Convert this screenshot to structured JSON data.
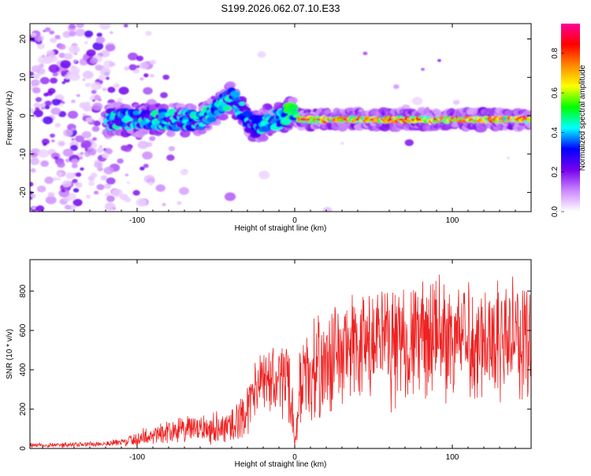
{
  "chart_data": [
    {
      "type": "heatmap",
      "title": "S199.2026.062.07.10.E33",
      "xlabel": "Height of straight line (km)",
      "ylabel": "Frequency (Hz)",
      "xlim": [
        -168,
        150
      ],
      "ylim": [
        -25,
        24
      ],
      "xticks": [
        -100,
        0,
        100
      ],
      "yticks": [
        -20,
        -10,
        0,
        10,
        20
      ],
      "xtick_labels": [
        "-100",
        "0",
        "100"
      ],
      "ytick_labels": [
        "-20",
        "-10",
        "0",
        "10",
        "20"
      ],
      "colorbar": {
        "label": "Normalized spectral amplitude",
        "range": [
          0,
          0.95
        ],
        "ticks": [
          0.0,
          0.2,
          0.4,
          0.6,
          0.8
        ],
        "tick_labels": [
          "0.0",
          "0.2",
          "0.4",
          "0.6",
          "0.8"
        ],
        "colors": [
          "#ffffff",
          "#cc88ff",
          "#7700ee",
          "#0000ff",
          "#00ffff",
          "#00ff00",
          "#ffff00",
          "#ff8800",
          "#ff0000",
          "#ff0099"
        ]
      },
      "ridge": {
        "x": [
          -118,
          -100,
          -80,
          -60,
          -45,
          -40,
          -35,
          -30,
          -25,
          -20,
          -15,
          -10,
          -5,
          -2,
          0,
          2,
          50,
          100,
          150
        ],
        "frequency": [
          -1,
          -1,
          -1,
          -1,
          3,
          5,
          2,
          -1,
          -3,
          -2,
          -1,
          -1,
          0,
          1,
          1,
          -1,
          -1,
          -1,
          -1
        ]
      }
    },
    {
      "type": "line",
      "xlabel": "Height of straight line (km)",
      "ylabel": "SNR (10 * v/v)",
      "xlim": [
        -168,
        150
      ],
      "ylim": [
        0,
        960
      ],
      "xticks": [
        -100,
        0,
        100
      ],
      "yticks": [
        0,
        200,
        400,
        600,
        800
      ],
      "xtick_labels": [
        "-100",
        "0",
        "100"
      ],
      "ytick_labels": [
        "0",
        "200",
        "400",
        "600",
        "800"
      ],
      "color": "#ee2222",
      "series": [
        {
          "name": "SNR",
          "envelope_x": [
            -168,
            -140,
            -110,
            -100,
            -80,
            -60,
            -45,
            -38,
            -30,
            -25,
            -20,
            -10,
            -5,
            -1,
            0,
            3,
            10,
            20,
            30,
            50,
            80,
            100,
            150
          ],
          "envelope_mean": [
            18,
            18,
            30,
            50,
            90,
            100,
            110,
            120,
            200,
            300,
            330,
            350,
            380,
            150,
            10,
            300,
            380,
            430,
            480,
            520,
            560,
            560,
            560
          ],
          "envelope_amp": [
            12,
            12,
            18,
            40,
            60,
            70,
            90,
            100,
            120,
            150,
            160,
            170,
            220,
            120,
            10,
            200,
            230,
            260,
            280,
            300,
            300,
            300,
            300
          ]
        }
      ]
    }
  ]
}
